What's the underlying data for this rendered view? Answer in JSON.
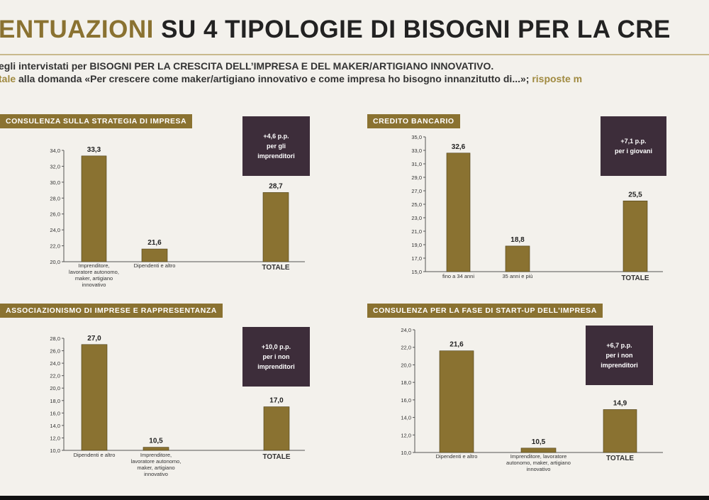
{
  "header": {
    "title_part1": "ENTUAZIONI",
    "title_part2": " SU 4 TIPOLOGIE DI BISOGNI PER LA CRE",
    "subtitle_line1": "egli intervistati per BISOGNI PER LA CRESCITA DELL’IMPRESA E DEL MAKER/ARTIGIANO INNOVATIVO.",
    "subtitle_line2_highlight": "tale",
    "subtitle_line2_text": " alla domanda «Per crescere come maker/artigiano innovativo e come impresa ho bisogno innanzitutto di...»; ",
    "subtitle_line2_tail": "risposte m"
  },
  "colors": {
    "bar": "#8a7231",
    "badge": "#3d2d3a",
    "title_accent": "#8a7231"
  },
  "chart_data": [
    {
      "type": "bar",
      "title": "CONSULENZA SULLA STRATEGIA DI IMPRESA",
      "badge": [
        "+4,6 p.p.",
        "per gli",
        "imprenditori"
      ],
      "categories": [
        [
          "Imprenditore,",
          "lavoratore autonomo,",
          "maker, artigiano",
          "innovativo"
        ],
        [
          "Dipendenti e altro"
        ],
        [
          "TOTALE"
        ]
      ],
      "values": [
        33.3,
        21.6,
        28.7
      ],
      "value_labels": [
        "33,3",
        "21,6",
        "28,7"
      ],
      "ylim": [
        20,
        34
      ],
      "yticks": [
        "20,0",
        "22,0",
        "24,0",
        "26,0",
        "28,0",
        "30,0",
        "32,0",
        "34,0"
      ]
    },
    {
      "type": "bar",
      "title": "CREDITO BANCARIO",
      "badge": [
        "+7,1 p.p.",
        "per i giovani"
      ],
      "categories": [
        [
          "fino a 34 anni"
        ],
        [
          "35 anni e più"
        ],
        [
          "TOTALE"
        ]
      ],
      "values": [
        32.6,
        18.8,
        25.5
      ],
      "value_labels": [
        "32,6",
        "18,8",
        "25,5"
      ],
      "ylim": [
        15,
        35
      ],
      "yticks": [
        "15,0",
        "17,0",
        "19,0",
        "21,0",
        "23,0",
        "25,0",
        "27,0",
        "29,0",
        "31,0",
        "33,0",
        "35,0"
      ]
    },
    {
      "type": "bar",
      "title": "ASSOCIAZIONISMO DI IMPRESE E RAPPRESENTANZA",
      "badge": [
        "+10,0 p.p.",
        "per i non",
        "imprenditori"
      ],
      "categories": [
        [
          "Dipendenti e altro"
        ],
        [
          "Imprenditore,",
          "lavoratore autonomo,",
          "maker, artigiano",
          "innovativo"
        ],
        [
          "TOTALE"
        ]
      ],
      "values": [
        27.0,
        10.5,
        17.0
      ],
      "value_labels": [
        "27,0",
        "10,5",
        "17,0"
      ],
      "ylim": [
        10,
        28
      ],
      "yticks": [
        "10,0",
        "12,0",
        "14,0",
        "16,0",
        "18,0",
        "20,0",
        "22,0",
        "24,0",
        "26,0",
        "28,0"
      ]
    },
    {
      "type": "bar",
      "title": "CONSULENZA PER LA FASE DI START-UP DELL’IMPRESA",
      "badge": [
        "+6,7 p.p.",
        "per i non",
        "imprenditori"
      ],
      "categories": [
        [
          "Dipendenti e altro"
        ],
        [
          "Imprenditore, lavoratore",
          "autonomo, maker, artigiano",
          "innovativo"
        ],
        [
          "TOTALE"
        ]
      ],
      "values": [
        21.6,
        10.5,
        14.9
      ],
      "value_labels": [
        "21,6",
        "10,5",
        "14,9"
      ],
      "ylim": [
        10,
        24
      ],
      "yticks": [
        "10,0",
        "12,0",
        "14,0",
        "16,0",
        "18,0",
        "20,0",
        "22,0",
        "24,0"
      ]
    }
  ]
}
